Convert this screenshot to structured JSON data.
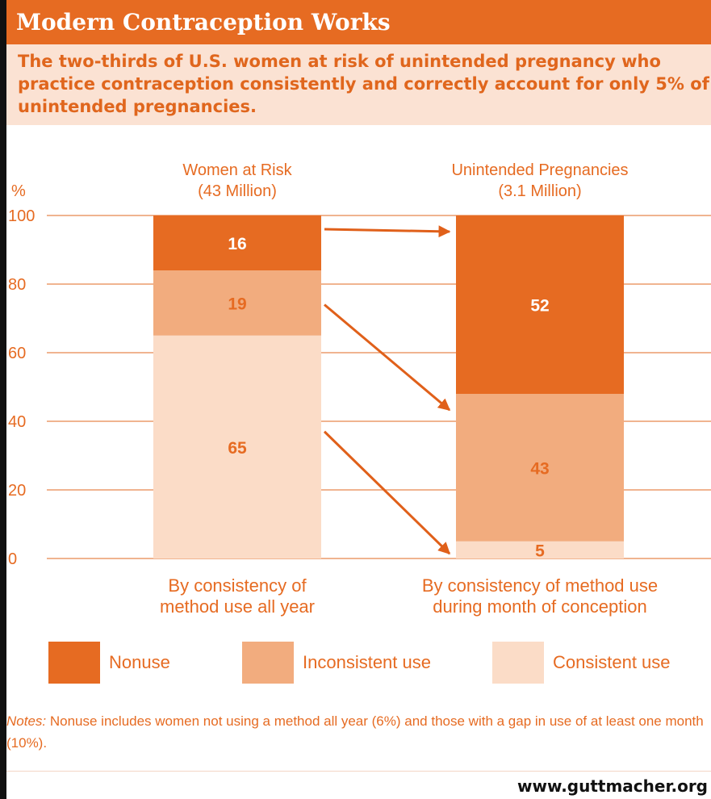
{
  "header": {
    "title": "Modern Contraception Works",
    "subtitle": "The two-thirds of U.S. women at risk of unintended pregnancy who practice contraception consistently and correctly account for only 5% of unintended pregnancies."
  },
  "chart_data": {
    "type": "bar",
    "stacked": true,
    "y_unit": "%",
    "ylim": [
      0,
      100
    ],
    "yticks": [
      "100",
      "80",
      "60",
      "40",
      "20",
      "0"
    ],
    "grid": true,
    "columns": [
      {
        "header_line1": "Women at Risk",
        "header_line2": "(43 Million)",
        "caption_line1": "By consistency of",
        "caption_line2": "method use all year"
      },
      {
        "header_line1": "Unintended Pregnancies",
        "header_line2": "(3.1 Million)",
        "caption_line1": "By consistency of method use",
        "caption_line2": "during month of conception"
      }
    ],
    "series": [
      {
        "name": "Nonuse",
        "values": [
          16,
          52
        ],
        "color": "#e66b22",
        "label_color": "#ffffff"
      },
      {
        "name": "Inconsistent use",
        "values": [
          19,
          43
        ],
        "color": "#f2ac7e",
        "label_color": "#e66b22"
      },
      {
        "name": "Consistent use",
        "values": [
          65,
          5
        ],
        "color": "#fbdcc7",
        "label_color": "#e66b22"
      }
    ],
    "legend_position": "bottom"
  },
  "notes": {
    "lead": "Notes:",
    "text": " Nonuse includes women not using a method all year (6%) and those with a gap in use of at least one month (10%)."
  },
  "footer": {
    "url": "www.guttmacher.org"
  },
  "colors": {
    "accent": "#e66b22",
    "grid": "#e8884d",
    "arrow": "#e0601a"
  }
}
